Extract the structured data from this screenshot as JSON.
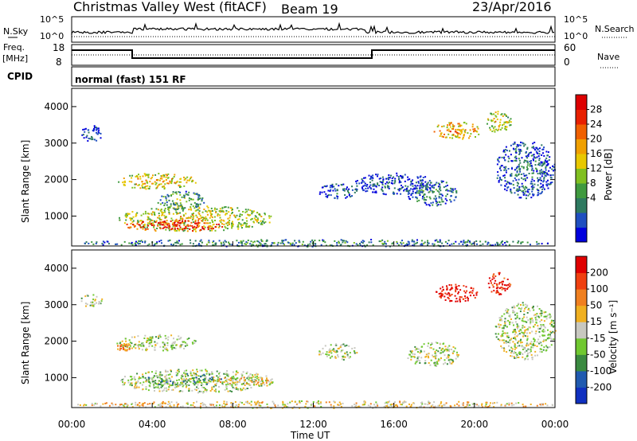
{
  "header": {
    "station": "Christmas Valley West (fitACF)",
    "beam": "Beam 19",
    "date": "23/Apr/2016"
  },
  "top_panels": {
    "nsky_label": "N.Sky",
    "nsky_ticks": [
      "10^5",
      "10^0"
    ],
    "nsearch_label": "N.Search",
    "nsearch_ticks": [
      "10^5",
      "10^0"
    ],
    "freq_label": "Freq.",
    "freq_unit": "[MHz]",
    "freq_ticks": [
      "18",
      "8"
    ],
    "nave_label": "Nave",
    "nave_ticks": [
      "60",
      "0"
    ],
    "cpid_label": "CPID",
    "cpid_value": "normal (fast) 151 RF"
  },
  "chart_data": [
    {
      "type": "heatmap",
      "name": "power",
      "ylabel": "Slant Range [km]",
      "xlabel": "",
      "y_ticks": [
        "4000",
        "3000",
        "2000",
        "1000"
      ],
      "ylim": [
        180,
        4500
      ],
      "colorbar_label": "Power [dB]",
      "colorbar_ticks": [
        "28",
        "24",
        "20",
        "16",
        "12",
        "8",
        "4"
      ],
      "colorbar_colors": [
        "#0000dd",
        "#1f4fc0",
        "#2e7a60",
        "#3f9a3f",
        "#80c020",
        "#e8c800",
        "#f0a000",
        "#f06000",
        "#e82000",
        "#dd0000"
      ],
      "regions": [
        {
          "t": [
            0.4,
            1.5
          ],
          "r": [
            3050,
            3500
          ],
          "level": 0.2
        },
        {
          "t": [
            2.2,
            6.2
          ],
          "r": [
            1750,
            2200
          ],
          "level": 0.65
        },
        {
          "t": [
            2.3,
            10.0
          ],
          "r": [
            600,
            1300
          ],
          "level": 0.6
        },
        {
          "t": [
            2.6,
            7.5
          ],
          "r": [
            600,
            900
          ],
          "level": 0.95
        },
        {
          "t": [
            4.2,
            6.6
          ],
          "r": [
            1200,
            1700
          ],
          "level": 0.4
        },
        {
          "t": [
            12.2,
            14.2
          ],
          "r": [
            1500,
            1900
          ],
          "level": 0.25
        },
        {
          "t": [
            14.0,
            18.0
          ],
          "r": [
            1600,
            2200
          ],
          "level": 0.2
        },
        {
          "t": [
            16.6,
            19.2
          ],
          "r": [
            1300,
            2000
          ],
          "level": 0.3
        },
        {
          "t": [
            17.9,
            20.3
          ],
          "r": [
            3100,
            3600
          ],
          "level": 0.7
        },
        {
          "t": [
            20.5,
            21.8
          ],
          "r": [
            3300,
            3900
          ],
          "level": 0.6
        },
        {
          "t": [
            21.0,
            24.0
          ],
          "r": [
            1500,
            3100
          ],
          "level": 0.25
        },
        {
          "t": [
            0.0,
            24.0
          ],
          "r": [
            180,
            380
          ],
          "level": 0.35
        }
      ]
    },
    {
      "type": "heatmap",
      "name": "velocity",
      "ylabel": "Slant Range [km]",
      "xlabel": "Time UT",
      "y_ticks": [
        "4000",
        "3000",
        "2000",
        "1000"
      ],
      "x_ticks": [
        "00:00",
        "04:00",
        "08:00",
        "12:00",
        "16:00",
        "20:00",
        "00:00"
      ],
      "xlim": [
        0,
        24
      ],
      "ylim": [
        180,
        4500
      ],
      "colorbar_label": "Velocity [m s⁻¹]",
      "colorbar_ticks": [
        "200",
        "100",
        "50",
        "15",
        "-15",
        "-50",
        "-100",
        "-200"
      ],
      "colorbar_colors": [
        "#1030c0",
        "#205ab0",
        "#3a8a40",
        "#70c830",
        "#c8c8c0",
        "#f0b020",
        "#f08020",
        "#f04010",
        "#e00000"
      ],
      "regions": [
        {
          "t": [
            0.4,
            1.5
          ],
          "r": [
            2950,
            3300
          ],
          "level": 0.45
        },
        {
          "t": [
            2.2,
            6.2
          ],
          "r": [
            1750,
            2200
          ],
          "level": 0.45
        },
        {
          "t": [
            2.2,
            2.9
          ],
          "r": [
            1750,
            1950
          ],
          "level": 0.7
        },
        {
          "t": [
            2.3,
            10.0
          ],
          "r": [
            600,
            1250
          ],
          "level": 0.45
        },
        {
          "t": [
            3.5,
            7.5
          ],
          "r": [
            800,
            1150
          ],
          "level": 0.32
        },
        {
          "t": [
            7.0,
            10.0
          ],
          "r": [
            800,
            1050
          ],
          "level": 0.58
        },
        {
          "t": [
            12.2,
            14.2
          ],
          "r": [
            1500,
            1950
          ],
          "level": 0.45
        },
        {
          "t": [
            16.6,
            19.2
          ],
          "r": [
            1300,
            2000
          ],
          "level": 0.45
        },
        {
          "t": [
            18.0,
            20.2
          ],
          "r": [
            3100,
            3600
          ],
          "level": 0.95
        },
        {
          "t": [
            20.6,
            21.8
          ],
          "r": [
            3300,
            3900
          ],
          "level": 0.9
        },
        {
          "t": [
            21.0,
            24.0
          ],
          "r": [
            1500,
            3100
          ],
          "level": 0.45
        },
        {
          "t": [
            0.0,
            24.0
          ],
          "r": [
            180,
            380
          ],
          "level": 0.58
        }
      ]
    }
  ]
}
